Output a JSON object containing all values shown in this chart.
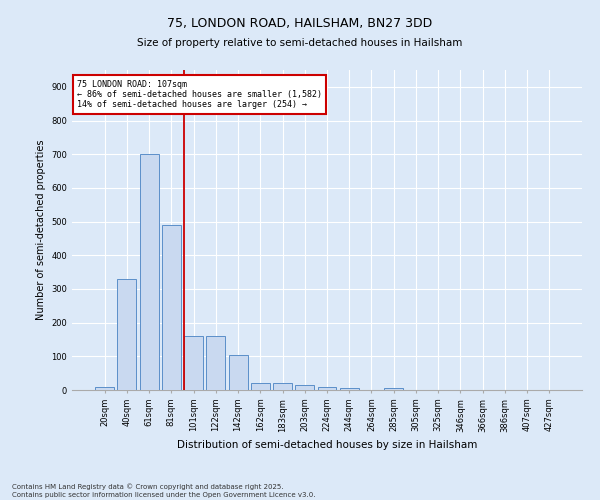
{
  "title1": "75, LONDON ROAD, HAILSHAM, BN27 3DD",
  "title2": "Size of property relative to semi-detached houses in Hailsham",
  "xlabel": "Distribution of semi-detached houses by size in Hailsham",
  "ylabel": "Number of semi-detached properties",
  "categories": [
    "20sqm",
    "40sqm",
    "61sqm",
    "81sqm",
    "101sqm",
    "122sqm",
    "142sqm",
    "162sqm",
    "183sqm",
    "203sqm",
    "224sqm",
    "244sqm",
    "264sqm",
    "285sqm",
    "305sqm",
    "325sqm",
    "346sqm",
    "366sqm",
    "386sqm",
    "407sqm",
    "427sqm"
  ],
  "values": [
    10,
    330,
    700,
    490,
    160,
    160,
    105,
    20,
    20,
    15,
    10,
    5,
    0,
    5,
    0,
    0,
    0,
    0,
    0,
    0,
    0
  ],
  "bar_color": "#c9d9f0",
  "bar_edge_color": "#5b8fc9",
  "annotation_text_line1": "75 LONDON ROAD: 107sqm",
  "annotation_text_line2": "← 86% of semi-detached houses are smaller (1,582)",
  "annotation_text_line3": "14% of semi-detached houses are larger (254) →",
  "annotation_box_color": "#ffffff",
  "annotation_box_edge_color": "#cc0000",
  "vline_color": "#cc0000",
  "vline_x_index": 4,
  "ylim": [
    0,
    950
  ],
  "yticks": [
    0,
    100,
    200,
    300,
    400,
    500,
    600,
    700,
    800,
    900
  ],
  "footer_line1": "Contains HM Land Registry data © Crown copyright and database right 2025.",
  "footer_line2": "Contains public sector information licensed under the Open Government Licence v3.0.",
  "background_color": "#dce9f8",
  "plot_bg_color": "#dce9f8",
  "grid_color": "#ffffff",
  "title1_fontsize": 9,
  "title2_fontsize": 7.5,
  "ylabel_fontsize": 7,
  "xlabel_fontsize": 7.5,
  "tick_fontsize": 6,
  "annotation_fontsize": 6,
  "footer_fontsize": 5
}
